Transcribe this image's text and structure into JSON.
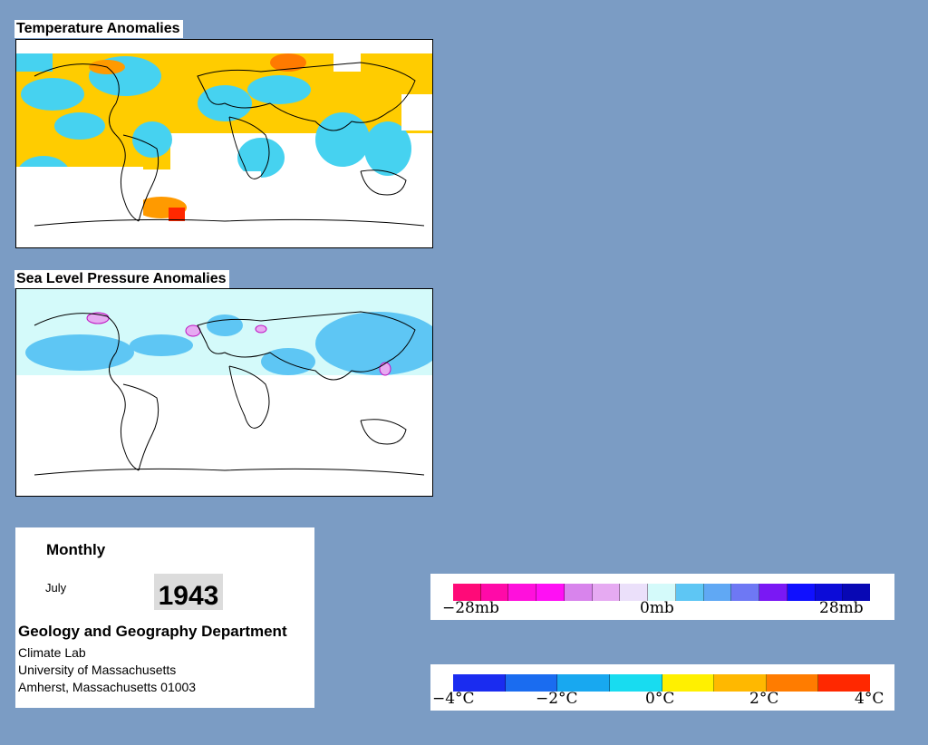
{
  "temperature_panel": {
    "title": "Temperature Anomalies"
  },
  "pressure_panel": {
    "title": "Sea Level Pressure Anomalies"
  },
  "info": {
    "period": "Monthly",
    "month": "July",
    "year": "1943",
    "department": "Geology and Geography Department",
    "address_lines": [
      "Climate Lab",
      "University of Massachusetts",
      "Amherst, Massachusetts 01003"
    ]
  },
  "pressure_legend": {
    "labels": [
      "−28mb",
      "0mb",
      "28mb"
    ],
    "colors": [
      "#ff0a78",
      "#ff0aa8",
      "#ff10dc",
      "#ff10f4",
      "#d884ec",
      "#e6aaf2",
      "#ebe0fa",
      "#d4fafa",
      "#5ec6f4",
      "#60a8f4",
      "#6e78f4",
      "#7a18f4",
      "#1010ff",
      "#0c0cd8",
      "#0808b4"
    ]
  },
  "temperature_legend": {
    "labels": [
      "−4°C",
      "−2°C",
      "0°C",
      "2°C",
      "4°C"
    ],
    "colors": [
      "#1a2cf0",
      "#1a6cf0",
      "#18a8f0",
      "#18dcf0",
      "#fff000",
      "#ffb800",
      "#ff7c00",
      "#ff2800"
    ]
  }
}
